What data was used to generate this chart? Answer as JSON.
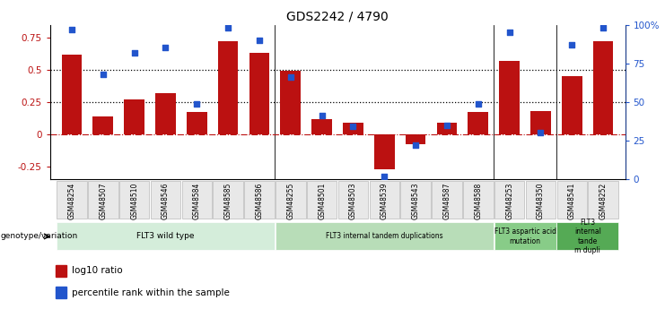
{
  "title": "GDS2242 / 4790",
  "samples": [
    "GSM48254",
    "GSM48507",
    "GSM48510",
    "GSM48546",
    "GSM48584",
    "GSM48585",
    "GSM48586",
    "GSM48255",
    "GSM48501",
    "GSM48503",
    "GSM48539",
    "GSM48543",
    "GSM48587",
    "GSM48588",
    "GSM48253",
    "GSM48350",
    "GSM48541",
    "GSM48252"
  ],
  "log10_ratio": [
    0.62,
    0.14,
    0.27,
    0.32,
    0.17,
    0.72,
    0.63,
    0.49,
    0.12,
    0.09,
    -0.27,
    -0.08,
    0.09,
    0.17,
    0.57,
    0.18,
    0.45,
    0.72
  ],
  "percentile_rank": [
    0.97,
    0.68,
    0.82,
    0.85,
    0.49,
    0.98,
    0.9,
    0.66,
    0.41,
    0.34,
    0.02,
    0.22,
    0.35,
    0.49,
    0.95,
    0.3,
    0.87,
    0.98
  ],
  "bar_color": "#bb1111",
  "scatter_color": "#2255cc",
  "groups": [
    {
      "label": "FLT3 wild type",
      "start": 0,
      "end": 7,
      "color": "#d4edda"
    },
    {
      "label": "FLT3 internal tandem duplications",
      "start": 7,
      "end": 14,
      "color": "#b8ddb8"
    },
    {
      "label": "FLT3 aspartic acid\nmutation",
      "start": 14,
      "end": 16,
      "color": "#88cc88"
    },
    {
      "label": "FLT3\ninternal\ntande\nm dupli",
      "start": 16,
      "end": 18,
      "color": "#55aa55"
    }
  ],
  "ylim_left": [
    -0.35,
    0.85
  ],
  "ylim_right": [
    0.0,
    1.0
  ],
  "yticks_left": [
    -0.25,
    0,
    0.25,
    0.5,
    0.75
  ],
  "yticks_right": [
    0.0,
    0.25,
    0.5,
    0.75,
    1.0
  ],
  "ytick_labels_right": [
    "0",
    "25",
    "50",
    "75",
    "100%"
  ],
  "hlines": [
    0.25,
    0.5
  ],
  "legend_items": [
    {
      "label": "log10 ratio",
      "color": "#bb1111"
    },
    {
      "label": "percentile rank within the sample",
      "color": "#2255cc"
    }
  ]
}
